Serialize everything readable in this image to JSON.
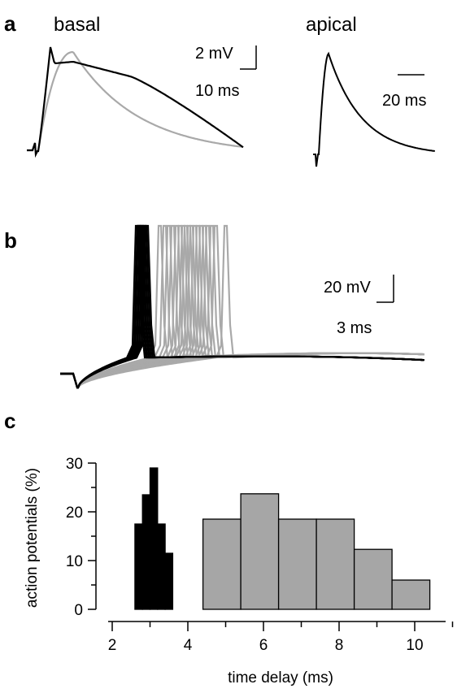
{
  "figure": {
    "panels": [
      {
        "letter": "a",
        "titles": [
          "basal",
          "apical"
        ],
        "scalebars": [
          {
            "v": "2 mV",
            "h": "10 ms"
          },
          {
            "h": "20 ms"
          }
        ]
      },
      {
        "letter": "b",
        "scalebars": [
          {
            "v": "20 mV",
            "h": "3 ms"
          }
        ]
      },
      {
        "letter": "c"
      }
    ]
  },
  "colors": {
    "black": "#000000",
    "gray": "#a6a6a6",
    "trace_gray": "#a9a9a9"
  },
  "chart_data": [
    {
      "type": "line",
      "panel": "a",
      "series": [
        {
          "color": "#000000",
          "note_key": "basal-black"
        },
        {
          "color": "#a9a9a9",
          "note_key": "basal-gray"
        },
        {
          "color": "#000000",
          "note_key": "apical"
        }
      ]
    },
    {
      "type": "line",
      "panel": "b",
      "series": [
        {
          "color": "#000000",
          "spike_count": 8
        },
        {
          "color": "#a9a9a9",
          "spike_count": 18
        }
      ]
    },
    {
      "type": "bar",
      "panel": "c",
      "xlabel": "time delay (ms)",
      "ylabel": "action potentials (%)",
      "xlim": [
        1.6,
        11.2
      ],
      "ylim": [
        0,
        30
      ],
      "xticks": [
        "2",
        "4",
        "6",
        "8",
        "10"
      ],
      "yticks": [
        "0",
        "10",
        "20",
        "30"
      ],
      "series": [
        {
          "color": "#000000",
          "bins": [
            {
              "x0": 2.6,
              "x1": 2.8,
              "value": 17.5
            },
            {
              "x0": 2.8,
              "x1": 3.0,
              "value": 23.5
            },
            {
              "x0": 3.0,
              "x1": 3.2,
              "value": 29.0
            },
            {
              "x0": 3.2,
              "x1": 3.4,
              "value": 17.5
            },
            {
              "x0": 3.4,
              "x1": 3.6,
              "value": 11.5
            }
          ]
        },
        {
          "color": "#a6a6a6",
          "bins": [
            {
              "x0": 4.4,
              "x1": 5.4,
              "value": 18.5
            },
            {
              "x0": 5.4,
              "x1": 6.4,
              "value": 23.7
            },
            {
              "x0": 6.4,
              "x1": 7.4,
              "value": 18.5
            },
            {
              "x0": 7.4,
              "x1": 8.4,
              "value": 18.5
            },
            {
              "x0": 8.4,
              "x1": 9.4,
              "value": 12.3
            },
            {
              "x0": 9.4,
              "x1": 10.4,
              "value": 6.0
            }
          ]
        }
      ]
    }
  ]
}
